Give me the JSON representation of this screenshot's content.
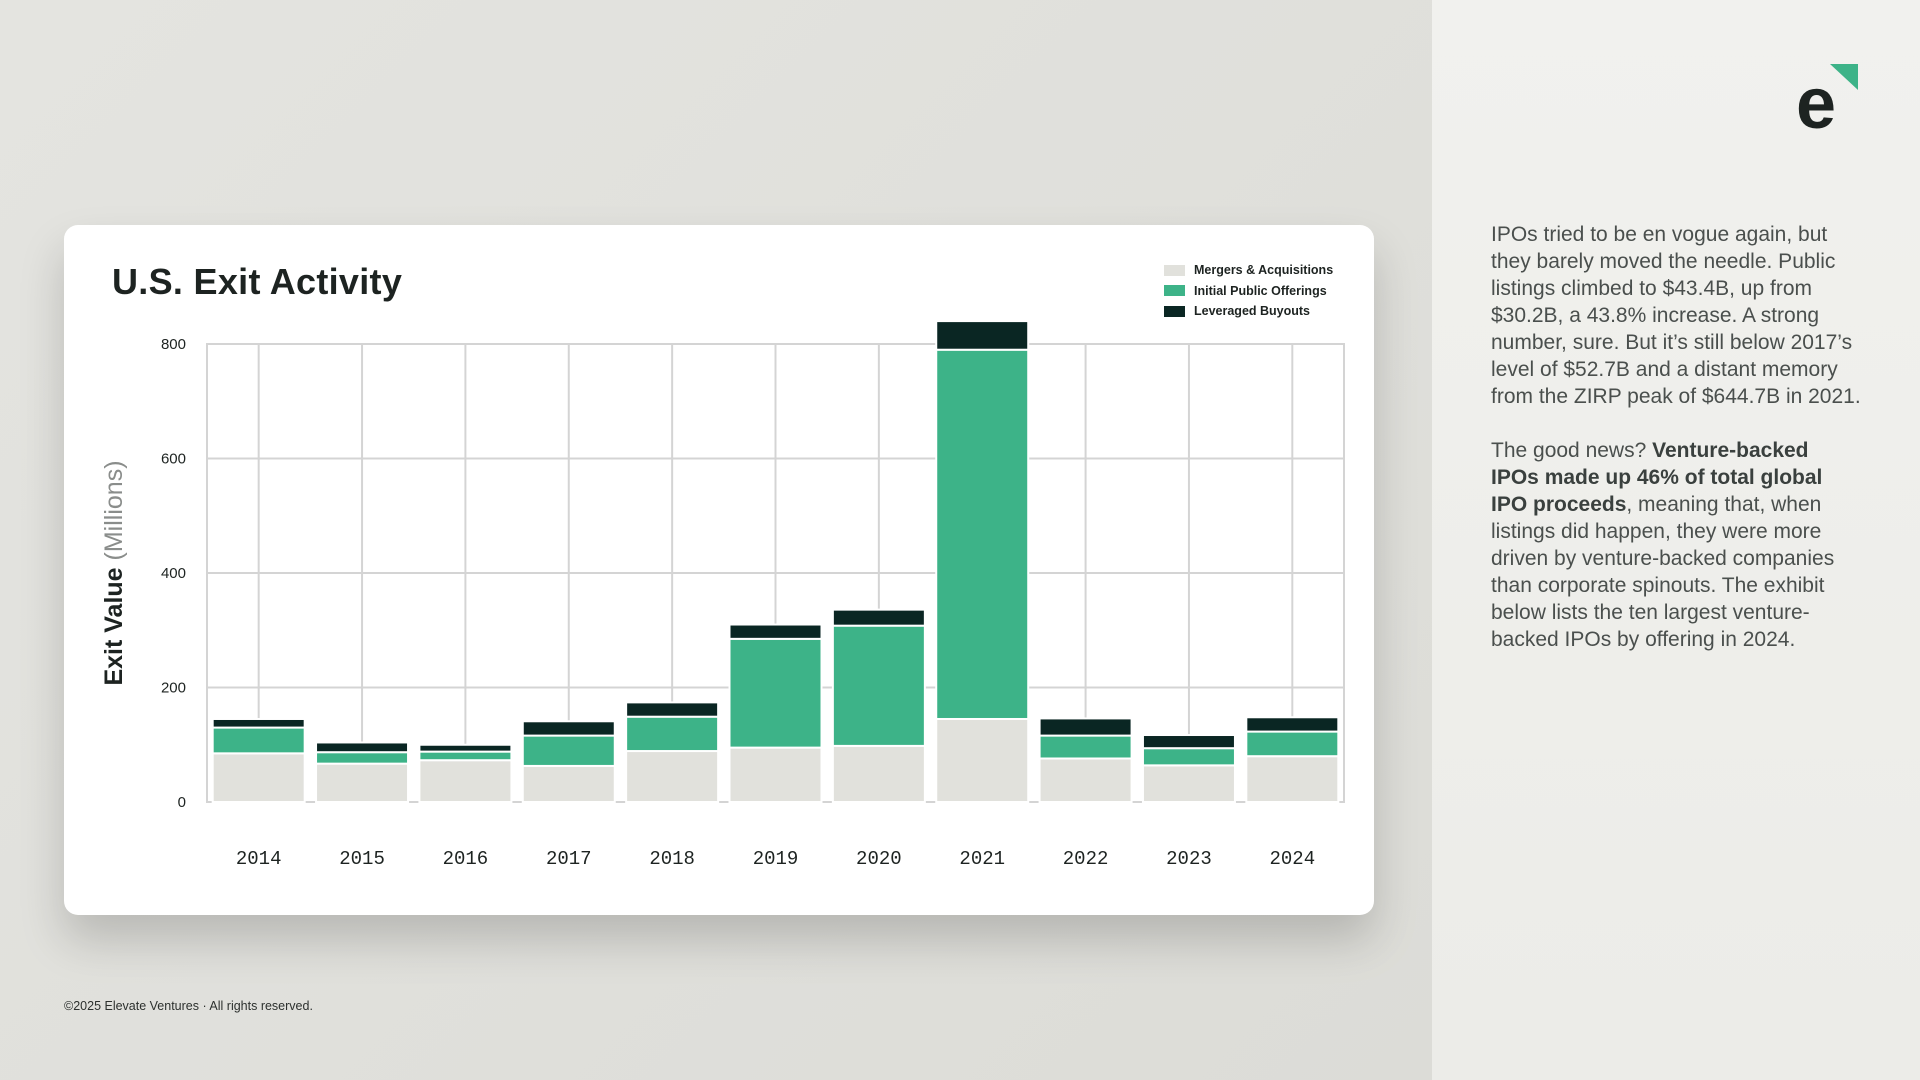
{
  "colors": {
    "ma": "#e1e1dc",
    "ipo": "#3db388",
    "lbo": "#0a2623",
    "grid": "#d4d4d4",
    "accent": "#3db388"
  },
  "logo": {
    "letter": "e",
    "icon": "elevate-logo-icon"
  },
  "panel": {
    "p1": "IPOs tried to be en vogue again, but they barely moved the needle. Public listings climbed to $43.4B, up from $30.2B, a 43.8% increase. A strong number, sure. But it’s still below 2017’s level of $52.7B and a distant memory from the ZIRP peak of $644.7B in 2021.",
    "p2_prefix": "The good news? ",
    "p2_bold": "Venture-backed IPOs made up 46% of total global IPO proceeds",
    "p2_suffix": ", meaning that, when listings did happen, they were more driven by venture-backed companies than corporate spinouts. The exhibit below lists the ten largest venture-backed IPOs by offering in 2024."
  },
  "footer": "©2025 Elevate Ventures · All rights reserved.",
  "chart_data": {
    "type": "bar",
    "stacked": true,
    "title": "U.S. Exit Activity",
    "ylabel_main": "Exit Value",
    "ylabel_unit": "(Millions)",
    "xlabel": "",
    "ylim": [
      0,
      800
    ],
    "yticks": [
      0,
      200,
      400,
      600,
      800
    ],
    "grid": true,
    "legend_position": "top-right",
    "categories": [
      "2014",
      "2015",
      "2016",
      "2017",
      "2018",
      "2019",
      "2020",
      "2021",
      "2022",
      "2023",
      "2024"
    ],
    "series": [
      {
        "name": "Mergers & Acquisitions",
        "color_key": "ma",
        "values": [
          85,
          67,
          73,
          63,
          89,
          95,
          98,
          145,
          76,
          64,
          80
        ]
      },
      {
        "name": "Initial Public Offerings",
        "color_key": "ipo",
        "values": [
          45,
          20,
          15,
          53,
          60,
          190,
          210,
          645,
          40,
          30,
          43
        ]
      },
      {
        "name": "Leveraged Buyouts",
        "color_key": "lbo",
        "values": [
          15,
          17,
          12,
          25,
          25,
          25,
          28,
          50,
          30,
          23,
          25
        ]
      }
    ]
  }
}
